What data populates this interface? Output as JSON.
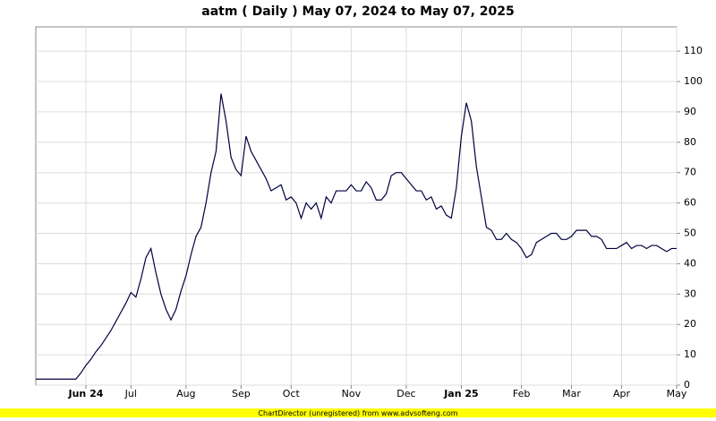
{
  "chart_data": {
    "type": "line",
    "title": "aatm ( Daily ) May 07, 2024 to May 07, 2025",
    "categories": [
      null,
      null,
      null,
      null,
      null,
      null,
      null,
      null,
      null,
      null,
      "Jun 24",
      null,
      null,
      null,
      null,
      null,
      null,
      null,
      null,
      "Jul",
      null,
      null,
      null,
      null,
      null,
      null,
      null,
      null,
      null,
      null,
      "Aug",
      null,
      null,
      null,
      null,
      null,
      null,
      null,
      null,
      null,
      null,
      "Sep",
      null,
      null,
      null,
      null,
      null,
      null,
      null,
      null,
      null,
      "Oct",
      null,
      null,
      null,
      null,
      null,
      null,
      null,
      null,
      null,
      null,
      null,
      "Nov",
      null,
      null,
      null,
      null,
      null,
      null,
      null,
      null,
      null,
      null,
      "Dec",
      null,
      null,
      null,
      null,
      null,
      null,
      null,
      null,
      null,
      null,
      "Jan 25",
      null,
      null,
      null,
      null,
      null,
      null,
      null,
      null,
      null,
      null,
      null,
      "Feb",
      null,
      null,
      null,
      null,
      null,
      null,
      null,
      null,
      null,
      "Mar",
      null,
      null,
      null,
      null,
      null,
      null,
      null,
      null,
      null,
      "Apr",
      null,
      null,
      null,
      null,
      null,
      null,
      null,
      null,
      null,
      null,
      "May"
    ],
    "series": [
      {
        "name": "aatm",
        "color": "#000040",
        "values": [
          2,
          2,
          2,
          2,
          2,
          2,
          2,
          2,
          2,
          4,
          6.5,
          8.5,
          11,
          13,
          15.5,
          18,
          21,
          24,
          27,
          30.5,
          29,
          35,
          42,
          45,
          37,
          30,
          25,
          21.5,
          25,
          31,
          36,
          43,
          49,
          52,
          60,
          70,
          77,
          96,
          87,
          75,
          71,
          69,
          82,
          77,
          74,
          71,
          68,
          64,
          65,
          66,
          61,
          62,
          60,
          55,
          60,
          58,
          60,
          55,
          62,
          60,
          64,
          64,
          64,
          66,
          64,
          64,
          67,
          65,
          61,
          61,
          63,
          69,
          70,
          70,
          68,
          66,
          64,
          64,
          61,
          62,
          58,
          59,
          56,
          55,
          65,
          82,
          93,
          87,
          72,
          62,
          52,
          51,
          48,
          48,
          50,
          48,
          47,
          45,
          42,
          43,
          47,
          48,
          49,
          50,
          50,
          48,
          48,
          49,
          51,
          51,
          51,
          49,
          49,
          48,
          45,
          45,
          45,
          46,
          47,
          45,
          46,
          46,
          45,
          46,
          46,
          45,
          44,
          45,
          45
        ]
      }
    ],
    "ylim": [
      0,
      118
    ],
    "yticks": [
      0,
      10,
      20,
      30,
      40,
      50,
      60,
      70,
      80,
      90,
      100,
      110
    ],
    "grid": true
  },
  "footer": "ChartDirector (unregistered) from www.advsofteng.com"
}
